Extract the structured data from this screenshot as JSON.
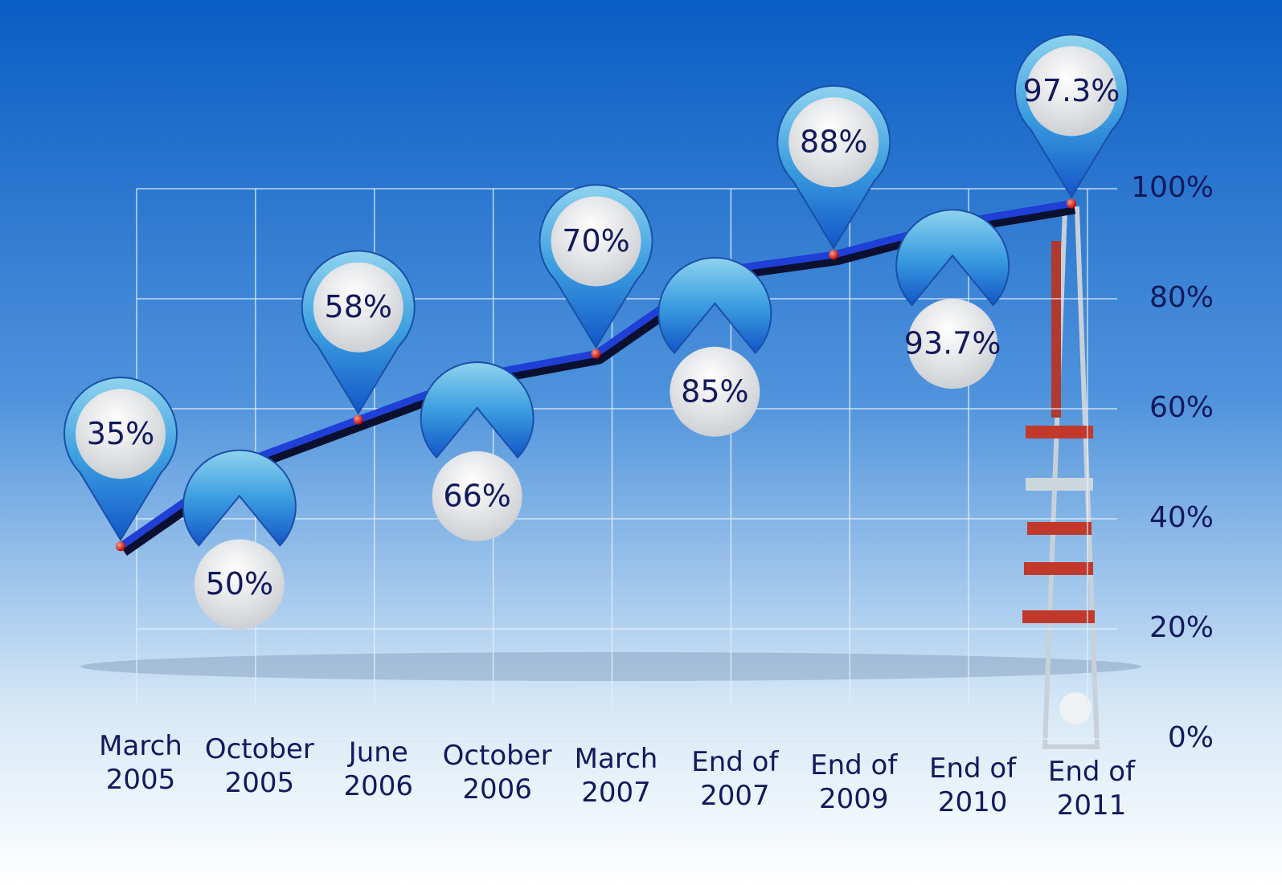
{
  "chart_data": {
    "type": "line",
    "categories": [
      "March 2005",
      "October 2005",
      "June 2006",
      "October 2006",
      "March 2007",
      "End of 2007",
      "End of 2009",
      "End of 2010",
      "End of 2011"
    ],
    "values": [
      35,
      50,
      58,
      66,
      70,
      85,
      88,
      93.7,
      97.3
    ],
    "value_labels": [
      "35%",
      "50%",
      "58%",
      "66%",
      "70%",
      "85%",
      "88%",
      "93.7%",
      "97.3%"
    ],
    "color": "#1f3fd6",
    "ylim": [
      0,
      100
    ],
    "yticks": [
      {
        "value": 0,
        "label": "0%"
      },
      {
        "value": 20,
        "label": "20%"
      },
      {
        "value": 40,
        "label": "40%"
      },
      {
        "value": 60,
        "label": "60%"
      },
      {
        "value": 80,
        "label": "80%"
      },
      {
        "value": 100,
        "label": "100%"
      }
    ],
    "grid": true
  }
}
